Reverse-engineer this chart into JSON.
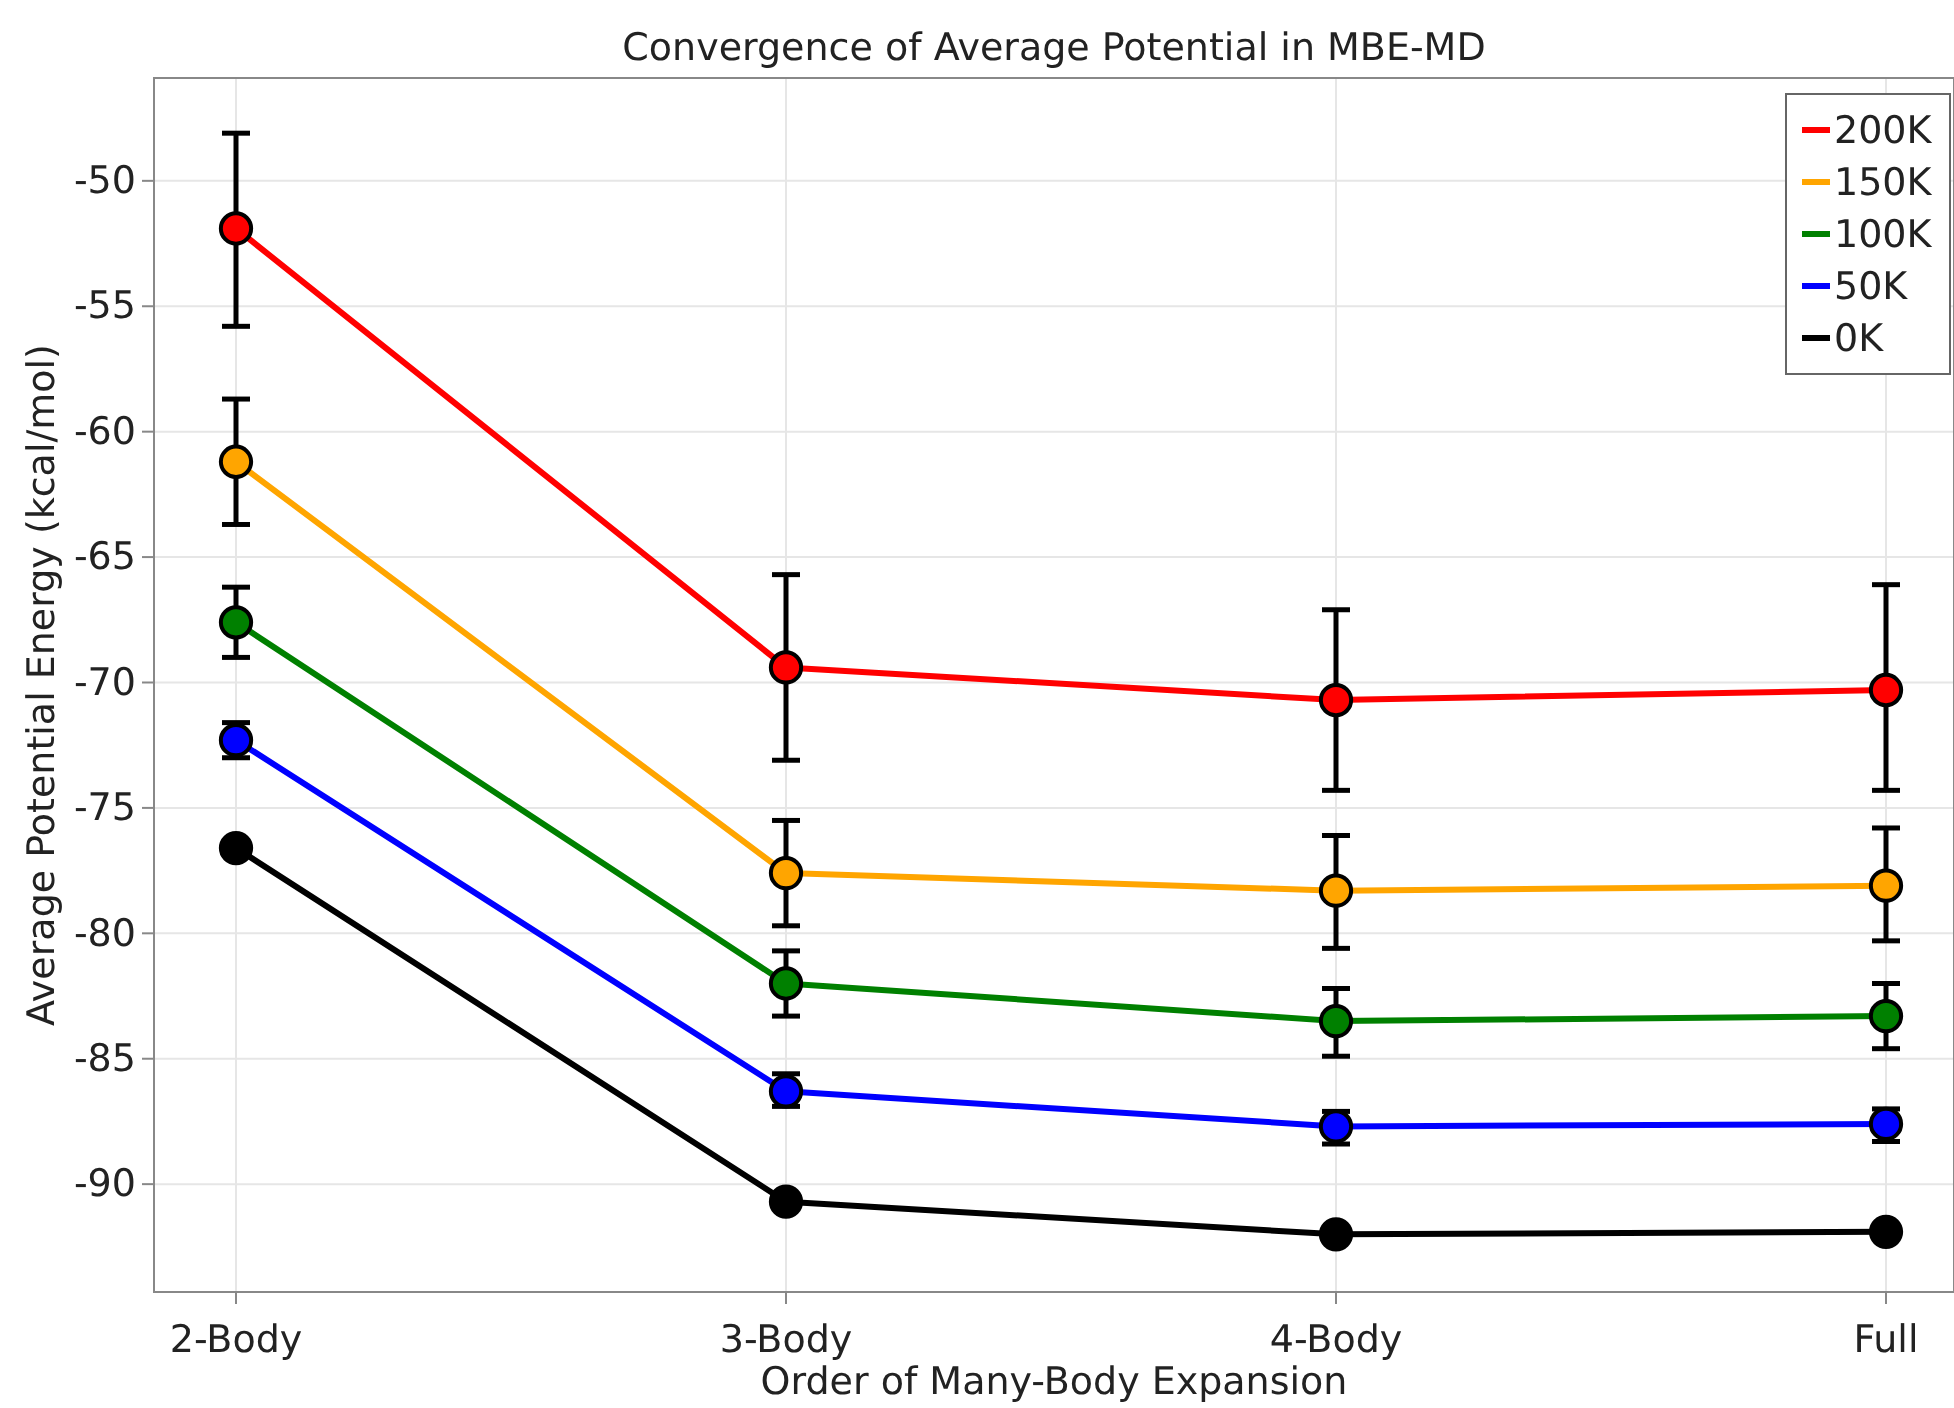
{
  "chart_data": {
    "type": "line",
    "title": "Convergence of Average Potential in MBE-MD",
    "xlabel": "Order of Many-Body Expansion",
    "ylabel": "Average Potential Energy (kcal/mol)",
    "categories": [
      "2-Body",
      "3-Body",
      "4-Body",
      "Full"
    ],
    "ylim": [
      -94.3,
      -45.9
    ],
    "yticks": [
      -90,
      -85,
      -80,
      -75,
      -70,
      -65,
      -60,
      -55,
      -50
    ],
    "grid": true,
    "legend": "top right",
    "marker": "circle",
    "line_style": "solid",
    "series": [
      {
        "name": "200K",
        "color": "#ff0000",
        "values": [
          -51.9,
          -69.4,
          -70.7,
          -70.3
        ],
        "errors": [
          [
            -55.8,
            -48.1
          ],
          [
            -73.1,
            -65.7
          ],
          [
            -74.3,
            -67.1
          ],
          [
            -74.3,
            -66.1
          ]
        ]
      },
      {
        "name": "150K",
        "color": "#ffa500",
        "values": [
          -61.2,
          -77.6,
          -78.3,
          -78.1
        ],
        "errors": [
          [
            -63.7,
            -58.7
          ],
          [
            -79.7,
            -75.5
          ],
          [
            -80.6,
            -76.1
          ],
          [
            -80.3,
            -75.8
          ]
        ]
      },
      {
        "name": "100K",
        "color": "#008000",
        "values": [
          -67.6,
          -82.0,
          -83.5,
          -83.3
        ],
        "errors": [
          [
            -69.0,
            -66.2
          ],
          [
            -83.3,
            -80.7
          ],
          [
            -84.9,
            -82.2
          ],
          [
            -84.6,
            -82.0
          ]
        ]
      },
      {
        "name": "50K",
        "color": "#0000ff",
        "values": [
          -72.3,
          -86.3,
          -87.7,
          -87.6
        ],
        "errors": [
          [
            -73.0,
            -71.6
          ],
          [
            -86.9,
            -85.6
          ],
          [
            -88.4,
            -87.1
          ],
          [
            -88.3,
            -87.0
          ]
        ]
      },
      {
        "name": "0K",
        "color": "#000000",
        "values": [
          -76.6,
          -90.7,
          -92.0,
          -91.9
        ]
      }
    ]
  }
}
